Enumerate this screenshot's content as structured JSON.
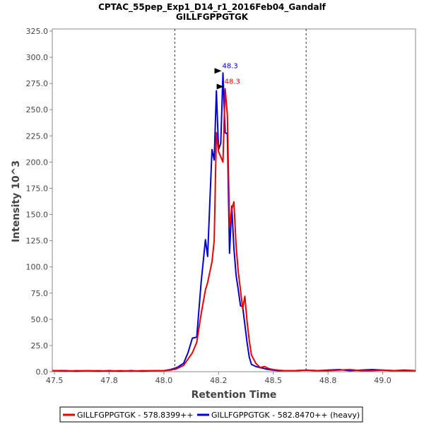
{
  "chart_data": {
    "type": "line",
    "title": "CPTAC_55pep_Exp1_D14_r1_2016Feb04_Gandalf",
    "subtitle": "GILLFGPPGTGK",
    "xlabel": "Retention Time",
    "ylabel": "Intensity 10^3",
    "xlim": [
      47.49,
      49.15
    ],
    "ylim": [
      0,
      327
    ],
    "x_ticks": [
      "47.5",
      "47.8",
      "48.0",
      "48.2",
      "48.5",
      "48.8",
      "49.0"
    ],
    "x_tick_values": [
      47.5,
      47.75,
      48.0,
      48.25,
      48.5,
      48.75,
      49.0
    ],
    "y_ticks": [
      "0.0",
      "25.0",
      "50.0",
      "75.0",
      "100.0",
      "125.0",
      "150.0",
      "175.0",
      "200.0",
      "225.0",
      "250.0",
      "275.0",
      "300.0",
      "325.0"
    ],
    "y_tick_values": [
      0,
      25,
      50,
      75,
      100,
      125,
      150,
      175,
      200,
      225,
      250,
      275,
      300,
      325
    ],
    "integration_boundaries": [
      48.05,
      48.65
    ],
    "grid": false,
    "legend_position": "bottom",
    "series": [
      {
        "name": "GILLFGPPGTGK - 578.8399++",
        "color": "#ee0000",
        "x": [
          47.49,
          47.55,
          47.6,
          47.65,
          47.7,
          47.75,
          47.8,
          47.85,
          47.9,
          47.95,
          48.0,
          48.03,
          48.06,
          48.09,
          48.11,
          48.13,
          48.15,
          48.17,
          48.19,
          48.2,
          48.22,
          48.23,
          48.24,
          48.25,
          48.26,
          48.27,
          48.28,
          48.29,
          48.3,
          48.31,
          48.32,
          48.33,
          48.34,
          48.35,
          48.36,
          48.37,
          48.38,
          48.39,
          48.4,
          48.42,
          48.44,
          48.46,
          48.48,
          48.5,
          48.52,
          48.55,
          48.6,
          48.65,
          48.7,
          48.75,
          48.8,
          48.85,
          48.9,
          48.95,
          49.0,
          49.05,
          49.1,
          49.15
        ],
        "y": [
          1,
          0.5,
          1,
          0.8,
          1,
          0.5,
          1,
          0.5,
          1,
          0.8,
          1,
          1.5,
          3,
          6,
          12,
          18,
          28,
          55,
          78,
          85,
          105,
          125,
          228,
          210,
          205,
          200,
          270,
          245,
          138,
          155,
          162,
          120,
          95,
          78,
          60,
          72,
          48,
          30,
          16,
          8,
          4,
          5,
          3,
          2,
          1.5,
          1,
          1,
          1.5,
          1,
          1,
          1.5,
          2,
          1,
          1,
          1.5,
          1,
          1,
          1
        ],
        "peak_label": "48.3"
      },
      {
        "name": "GILLFGPPGTGK - 582.8470++ (heavy)",
        "color": "#0000dd",
        "x": [
          47.49,
          47.55,
          47.6,
          47.65,
          47.7,
          47.75,
          47.8,
          47.85,
          47.9,
          47.95,
          48.0,
          48.03,
          48.06,
          48.09,
          48.11,
          48.13,
          48.15,
          48.17,
          48.19,
          48.2,
          48.22,
          48.23,
          48.24,
          48.25,
          48.26,
          48.27,
          48.28,
          48.29,
          48.3,
          48.31,
          48.32,
          48.33,
          48.34,
          48.35,
          48.36,
          48.37,
          48.38,
          48.39,
          48.4,
          48.42,
          48.44,
          48.46,
          48.48,
          48.5,
          48.52,
          48.55,
          48.6,
          48.65,
          48.7,
          48.75,
          48.8,
          48.85,
          48.9,
          48.95,
          49.0,
          49.05,
          49.1,
          49.15
        ],
        "y": [
          1,
          1,
          0.5,
          1,
          0.5,
          1,
          0.5,
          1,
          0.5,
          1,
          1,
          2,
          4,
          8,
          18,
          32,
          33,
          85,
          126,
          110,
          212,
          202,
          268,
          212,
          218,
          285,
          228,
          227,
          113,
          158,
          118,
          92,
          78,
          63,
          62,
          45,
          28,
          14,
          7,
          5,
          4,
          3,
          2,
          1.5,
          1,
          1,
          1,
          1.5,
          1,
          1.5,
          2,
          1,
          1.5,
          2,
          1.5,
          1,
          1.5,
          1
        ],
        "peak_label": "48.3"
      }
    ]
  }
}
